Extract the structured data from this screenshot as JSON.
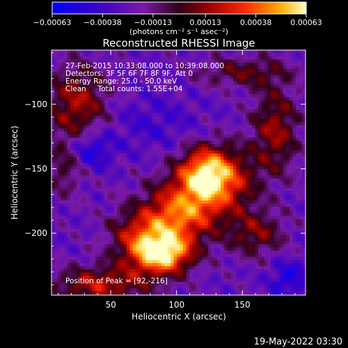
{
  "chart_data": {
    "type": "heatmap",
    "title": "Reconstructed RHESSI Image",
    "xlabel": "Heliocentric X (arcsec)",
    "ylabel": "Heliocentric Y (arcsec)",
    "xlim": [
      5,
      198
    ],
    "ylim": [
      -248,
      -58
    ],
    "x_ticks": [
      50,
      100,
      150
    ],
    "y_ticks": [
      -100,
      -150,
      -200
    ],
    "colorbar": {
      "range": [
        -0.00063,
        0.00063
      ],
      "ticks": [
        -0.00063,
        -0.00038,
        -0.00013,
        0.00013,
        0.00038,
        0.00063
      ],
      "tick_labels": [
        "-0.00063",
        "-0.00038",
        "-0.00013",
        "0.00013",
        "0.00038",
        "0.00063"
      ],
      "unit_label": "(photons cm⁻² s⁻¹ asec⁻²)"
    },
    "annotations": [
      "27-Feb-2015 10:33:08.000 to 10:39:08.000",
      "Detectors: 3F 5F 6F 7F 8F 9F, Att 0",
      "Energy Range: 25.0 - 50.0 keV",
      "Clean     Total counts: 1.55E+04"
    ],
    "peak_label": "Position of Peak = [92,-216]",
    "peak": [
      92,
      -216
    ]
  },
  "footer_timestamp": "19-May-2022 03:30",
  "colors": {
    "background": "#000000",
    "foreground": "#ffffff"
  }
}
